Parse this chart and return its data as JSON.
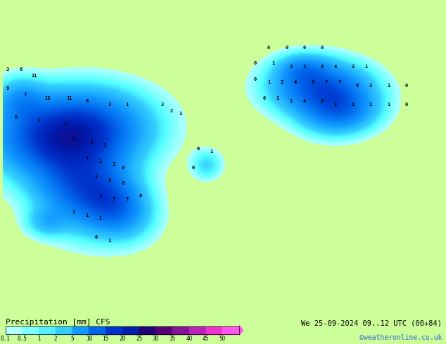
{
  "title_left": "Precipitation [mm] CFS",
  "datetime_text": "We 25-09-2024 09..12 UTC (00+84)",
  "credit_text": "©weatheronline.co.uk",
  "bg_color": "#ccff99",
  "colorbar_labels": [
    "0.1",
    "0.5",
    "1",
    "2",
    "5",
    "10",
    "15",
    "20",
    "25",
    "30",
    "35",
    "40",
    "45",
    "50"
  ],
  "colorbar_colors": [
    "#b2ffff",
    "#7fffff",
    "#55eeff",
    "#33ccff",
    "#1199ff",
    "#0066ee",
    "#0033cc",
    "#001faa",
    "#220077",
    "#550077",
    "#881199",
    "#bb22bb",
    "#ee33cc",
    "#ff55ee"
  ],
  "map_bg": "#ccff99",
  "land_color": "#ddeecc",
  "water_color": "#aaddff"
}
